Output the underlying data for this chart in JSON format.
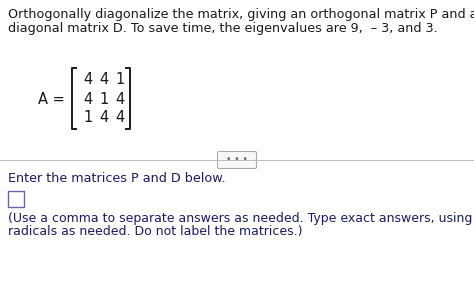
{
  "line1": "Orthogonally diagonalize the matrix, giving an orthogonal matrix P and a",
  "line2": "diagonal matrix D. To save time, the eigenvalues are 9,  – 3, and 3.",
  "matrix_rows": [
    [
      "4",
      "4",
      "1"
    ],
    [
      "4",
      "1",
      "4"
    ],
    [
      "1",
      "4",
      "4"
    ]
  ],
  "dots_text": "• • •",
  "enter_text": "Enter the matrices P and D below.",
  "footnote_line1": "(Use a comma to separate answers as needed. Type exact answers, using",
  "footnote_line2": "radicals as needed. Do not label the matrices.)",
  "bg_color": "#ffffff",
  "text_color_top": "#1a1a1a",
  "text_color_bottom": "#1a1a6e",
  "font_size_main": 9.2,
  "font_size_matrix": 10.5,
  "font_size_footnote": 9.0
}
